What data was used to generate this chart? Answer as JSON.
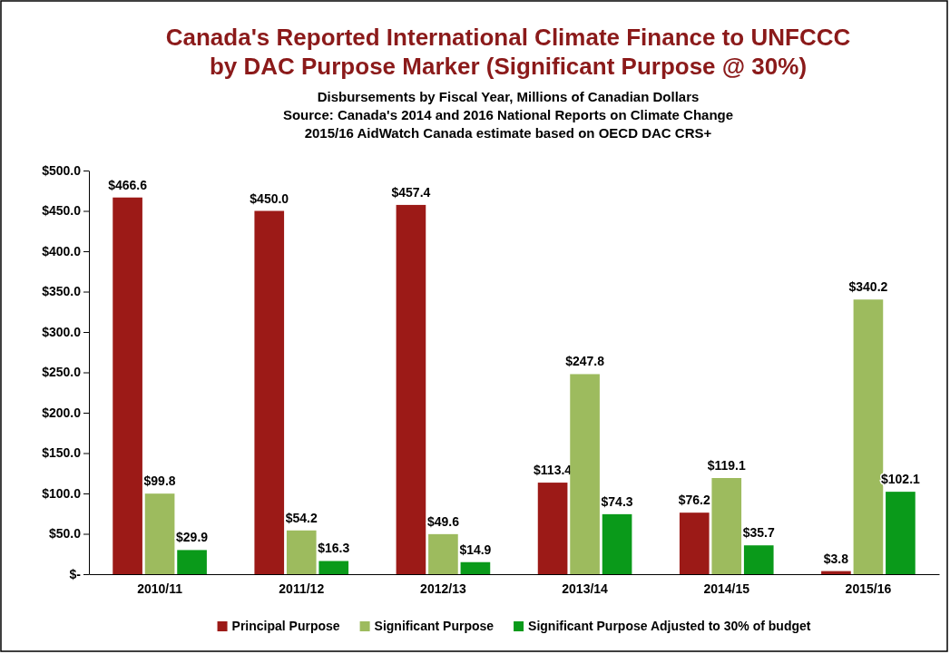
{
  "chart_data": {
    "type": "bar",
    "title": "Canada's Reported International Climate Finance to UNFCCC\nby DAC Purpose Marker (Significant Purpose @ 30%)",
    "subtitle": "Disbursements by Fiscal Year, Millions of Canadian Dollars\nSource:  Canada's 2014 and 2016 National Reports on Climate Change\n2015/16 AidWatch Canada estimate based on OECD DAC CRS+",
    "categories": [
      "2010/11",
      "2011/12",
      "2012/13",
      "2013/14",
      "2014/15",
      "2015/16"
    ],
    "series": [
      {
        "name": "Principal Purpose",
        "color": "#9c1a17",
        "values": [
          466.6,
          450.0,
          457.4,
          113.4,
          76.2,
          3.8
        ],
        "value_labels": [
          "$466.6",
          "$450.0",
          "$457.4",
          "$113.4",
          "$76.2",
          "$3.8"
        ]
      },
      {
        "name": "Significant Purpose",
        "color": "#9dbb5e",
        "values": [
          99.8,
          54.2,
          49.6,
          247.8,
          119.1,
          340.2
        ],
        "value_labels": [
          "$99.8",
          "$54.2",
          "$49.6",
          "$247.8",
          "$119.1",
          "$340.2"
        ]
      },
      {
        "name": "Significant Purpose Adjusted to 30% of budget",
        "color": "#0a9a1a",
        "values": [
          29.9,
          16.3,
          14.9,
          74.3,
          35.7,
          102.1
        ],
        "value_labels": [
          "$29.9",
          "$16.3",
          "$14.9",
          "$74.3",
          "$35.7",
          "$102.1"
        ]
      }
    ],
    "ylim": [
      0,
      500
    ],
    "yticks": [
      {
        "value": 0,
        "label": "$-"
      },
      {
        "value": 50,
        "label": "$50.0"
      },
      {
        "value": 100,
        "label": "$100.0"
      },
      {
        "value": 150,
        "label": "$150.0"
      },
      {
        "value": 200,
        "label": "$200.0"
      },
      {
        "value": 250,
        "label": "$250.0"
      },
      {
        "value": 300,
        "label": "$300.0"
      },
      {
        "value": 350,
        "label": "$350.0"
      },
      {
        "value": 400,
        "label": "$400.0"
      },
      {
        "value": 450,
        "label": "$450.0"
      },
      {
        "value": 500,
        "label": "$500.0"
      }
    ],
    "grid": false,
    "legend": "bottom"
  }
}
